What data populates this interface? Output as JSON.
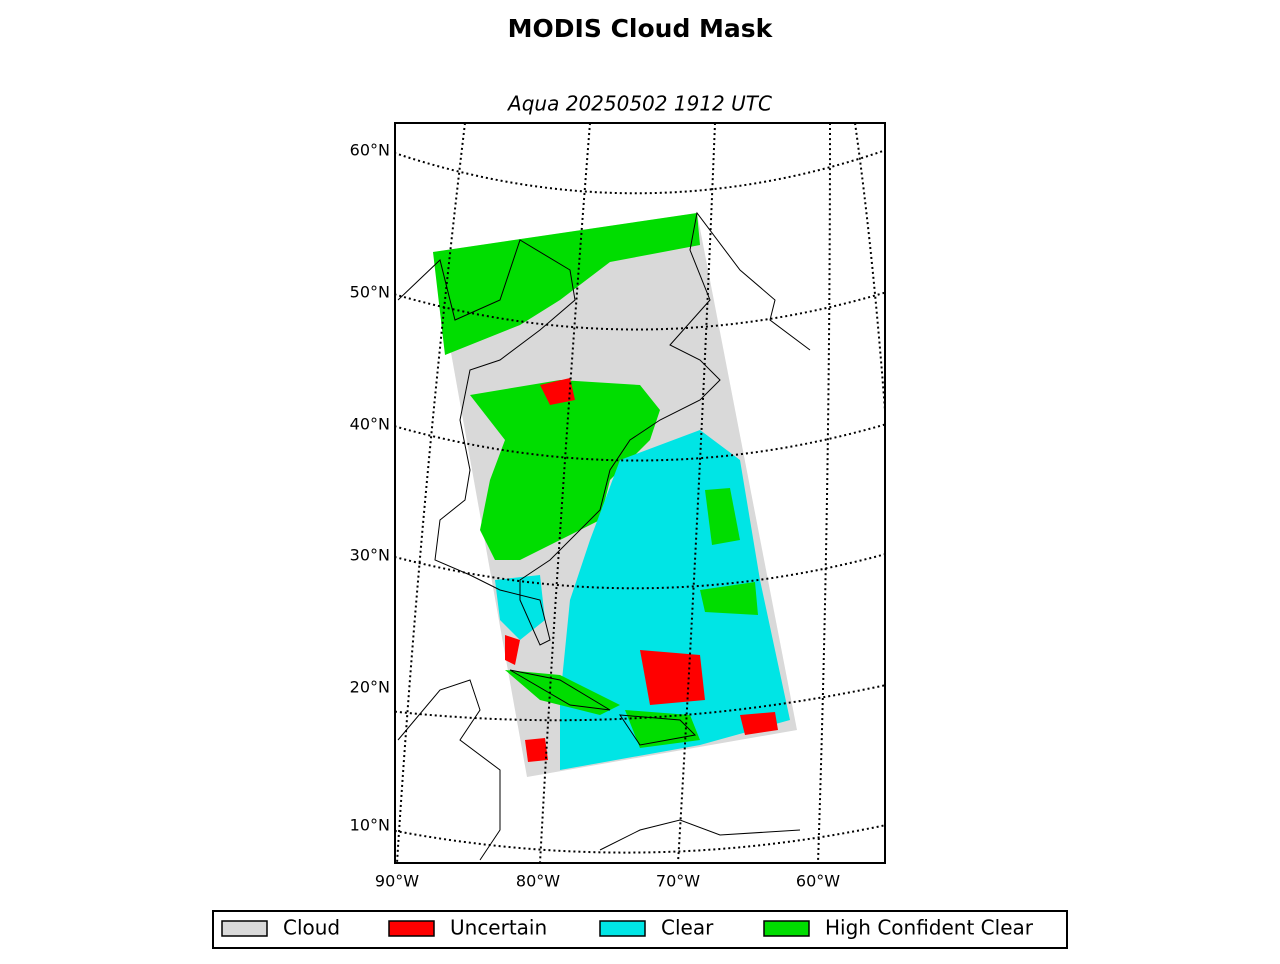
{
  "map": {
    "title": "MODIS Cloud Mask",
    "subtitle": "Aqua 20250502 1912 UTC",
    "lat_labels": [
      "60°N",
      "50°N",
      "40°N",
      "30°N",
      "20°N",
      "10°N"
    ],
    "lon_labels": [
      "90°W",
      "80°W",
      "70°W",
      "60°W"
    ],
    "legend": [
      {
        "name": "Cloud",
        "color": "#d9d9d9"
      },
      {
        "name": "Uncertain",
        "color": "#ff0000"
      },
      {
        "name": "Clear",
        "color": "#00e5e5"
      },
      {
        "name": "High Confident Clear",
        "color": "#00dd00"
      }
    ]
  }
}
